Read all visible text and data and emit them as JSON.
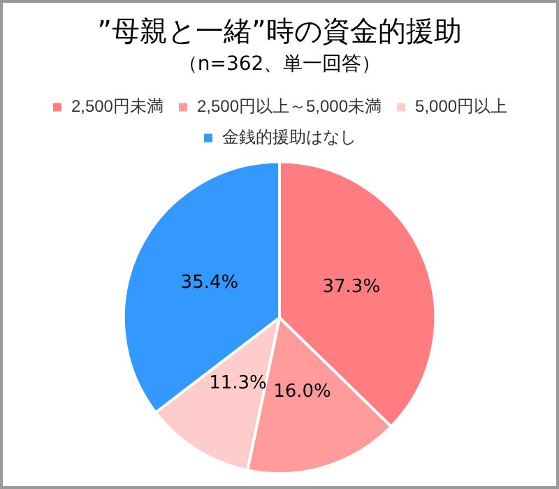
{
  "chart_data": {
    "type": "pie",
    "title": "”母親と一緒”時の資金的援助",
    "subtitle": "（n=362、単一回答）",
    "categories": [
      "2,500円未満",
      "2,500円以上～5,000未満",
      "5,000円以上",
      "金銭的援助はなし"
    ],
    "values": [
      37.3,
      16.0,
      11.3,
      35.4
    ],
    "colors": [
      "#ff7c80",
      "#ff9b9b",
      "#ffcccc",
      "#3399ff"
    ],
    "value_labels": [
      "37.3%",
      "16.0%",
      "11.3%",
      "35.4%"
    ],
    "legend": "top"
  }
}
